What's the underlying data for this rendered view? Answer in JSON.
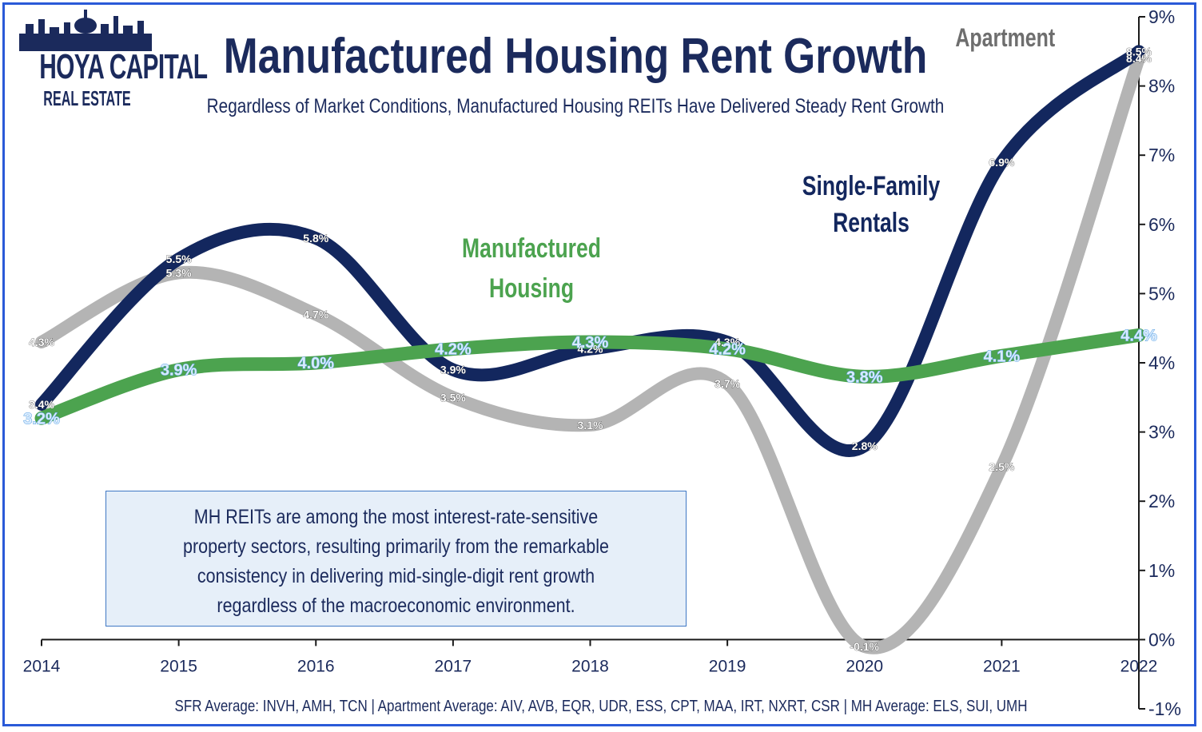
{
  "logo": {
    "main": "HOYA CAPITAL",
    "sub": "REAL ESTATE"
  },
  "title": "Manufactured Housing Rent Growth",
  "subtitle": "Regardless of Market Conditions, Manufactured Housing REITs Have Delivered Steady Rent Growth",
  "note": "MH REITs are among the most interest-rate-sensitive property sectors, resulting primarily from the remarkable consistency in delivering mid-single-digit rent growth regardless of the macroeconomic environment.",
  "footer": "SFR Average: INVH, AMH, TCN | Apartment Average: AIV, AVB, EQR, UDR, ESS, CPT, MAA, IRT, NXRT, CSR | MH Average: ELS, SUI, UMH",
  "labels": {
    "apartment": "Apartment",
    "sfr_line1": "Single-Family",
    "sfr_line2": "Rentals",
    "mh_line1": "Manufactured",
    "mh_line2": "Housing"
  },
  "colors": {
    "sfr": "#13275e",
    "apartment": "#b4b4b4",
    "mh": "#4ca34f",
    "text": "#1b2a5c",
    "border": "#2a5ad8"
  },
  "chart_data": {
    "type": "line",
    "title": "Manufactured Housing Rent Growth",
    "categories": [
      "2014",
      "2015",
      "2016",
      "2017",
      "2018",
      "2019",
      "2020",
      "2021",
      "2022"
    ],
    "ylim": [
      -1,
      9
    ],
    "y_ticks": [
      "-1%",
      "0%",
      "1%",
      "2%",
      "3%",
      "4%",
      "5%",
      "6%",
      "7%",
      "8%",
      "9%"
    ],
    "y_axis_side": "right",
    "grid": false,
    "series": [
      {
        "name": "Apartment",
        "color": "#b4b4b4",
        "values": [
          4.3,
          5.3,
          4.7,
          3.5,
          3.1,
          3.7,
          -0.1,
          2.5,
          8.4
        ],
        "labels": [
          "4.3%",
          "5.3%",
          "4.7%",
          "3.5%",
          "3.1%",
          "3.7%",
          "-0.1%",
          "2.5%",
          "8.4%"
        ]
      },
      {
        "name": "Single-Family Rentals",
        "color": "#13275e",
        "values": [
          3.4,
          5.5,
          5.8,
          3.9,
          4.2,
          4.3,
          2.8,
          6.9,
          8.5
        ],
        "labels": [
          "3.4%",
          "5.5%",
          "5.8%",
          "3.9%",
          "4.2%",
          "4.3%",
          "2.8%",
          "6.9%",
          "8.5%"
        ]
      },
      {
        "name": "Manufactured Housing",
        "color": "#4ca34f",
        "values": [
          3.2,
          3.9,
          4.0,
          4.2,
          4.3,
          4.2,
          3.8,
          4.1,
          4.4
        ],
        "labels": [
          "3.2%",
          "3.9%",
          "4.0%",
          "4.2%",
          "4.3%",
          "4.2%",
          "3.8%",
          "4.1%",
          "4.4%"
        ]
      }
    ]
  }
}
